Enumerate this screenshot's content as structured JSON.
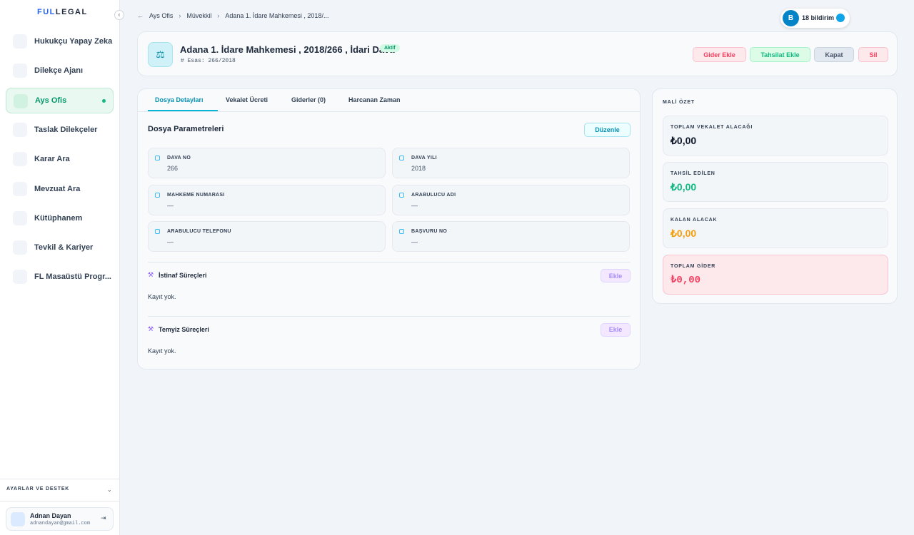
{
  "sidebar": {
    "logo": [
      "FUL",
      "LEGAL"
    ],
    "menu": [
      "Hukukçu Yapay Zeka",
      "Dilekçe Ajanı",
      "Ays Ofis",
      "Taslak Dilekçeler",
      "Karar Ara",
      "Mevzuat Ara",
      "Kütüphanem",
      "Tevkil & Kariyer",
      "FL Masaüstü Progr..."
    ],
    "active": 2,
    "settings": "AYARLAR VE DESTEK",
    "user": {
      "name": "Adnan Dayan",
      "email": "adnandayan@gmail.com"
    }
  },
  "breadcrumb": [
    "Ays Ofis",
    "Müvekkil",
    "Adana 1. İdare Mahkemesi , 2018/..."
  ],
  "notifications": {
    "avatar": "B",
    "label": "18 bildirim"
  },
  "header": {
    "title": "Adana 1. İdare Mahkemesi , 2018/266 , İdari Dava",
    "status": "Aktif",
    "subtitle": "Esas: 266/2018",
    "actions": [
      "Gider Ekle",
      "Tahsilat Ekle",
      "Kapat",
      "Sil"
    ]
  },
  "tabs": [
    "Dosya Detayları",
    "Vekalet Ücreti",
    "Giderler (0)",
    "Harcanan Zaman"
  ],
  "params": {
    "title": "Dosya Parametreleri",
    "edit": "Düzenle",
    "fields": [
      {
        "label": "DAVA NO",
        "value": "266"
      },
      {
        "label": "DAVA YILI",
        "value": "2018"
      },
      {
        "label": "MAHKEME NUMARASI",
        "value": "—"
      },
      {
        "label": "ARABULUCU ADI",
        "value": "—"
      },
      {
        "label": "ARABULUCU TELEFONU",
        "value": "—"
      },
      {
        "label": "BAŞVURU NO",
        "value": "—"
      }
    ]
  },
  "sections": [
    {
      "title": "İstinaf Süreçleri",
      "add": "Ekle",
      "empty": "Kayıt yok."
    },
    {
      "title": "Temyiz Süreçleri",
      "add": "Ekle",
      "empty": "Kayıt yok."
    }
  ],
  "summary": {
    "title": "MALİ ÖZET",
    "items": [
      {
        "label": "TOPLAM VEKALET ALACAĞI",
        "value": "₺0,00"
      },
      {
        "label": "TAHSİL EDİLEN",
        "value": "₺0,00"
      },
      {
        "label": "KALAN ALACAK",
        "value": "₺0,00"
      },
      {
        "label": "TOPLAM GİDER",
        "value": "₺0,00"
      }
    ]
  }
}
